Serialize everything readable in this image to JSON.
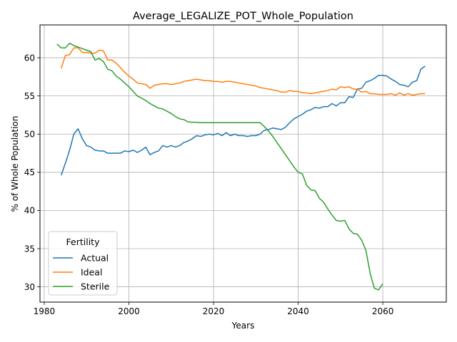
{
  "chart_data": {
    "type": "line",
    "title": "Average_LEGALIZE_POT_Whole_Population",
    "xlabel": "Years",
    "ylabel": "% of Whole Population",
    "xlim": [
      1979,
      2075
    ],
    "ylim": [
      28,
      64.3
    ],
    "xticks": [
      1980,
      2000,
      2020,
      2040,
      2060
    ],
    "yticks": [
      30,
      35,
      40,
      45,
      50,
      55,
      60
    ],
    "grid": true,
    "legend": {
      "title": "Fertility",
      "position": "lower-left"
    },
    "series": [
      {
        "name": "Actual",
        "color": "#1f77b4",
        "points": [
          [
            1984,
            44.6
          ],
          [
            1985,
            46.2
          ],
          [
            1986,
            47.9
          ],
          [
            1987,
            50.0
          ],
          [
            1988,
            50.7
          ],
          [
            1989,
            49.4
          ],
          [
            1990,
            48.5
          ],
          [
            1991,
            48.3
          ],
          [
            1992,
            47.9
          ],
          [
            1993,
            47.8
          ],
          [
            1994,
            47.8
          ],
          [
            1995,
            47.5
          ],
          [
            1996,
            47.5
          ],
          [
            1997,
            47.5
          ],
          [
            1998,
            47.5
          ],
          [
            1999,
            47.8
          ],
          [
            2000,
            47.7
          ],
          [
            2001,
            47.9
          ],
          [
            2002,
            47.6
          ],
          [
            2003,
            47.9
          ],
          [
            2004,
            48.3
          ],
          [
            2005,
            47.3
          ],
          [
            2006,
            47.6
          ],
          [
            2007,
            47.8
          ],
          [
            2008,
            48.5
          ],
          [
            2009,
            48.3
          ],
          [
            2010,
            48.5
          ],
          [
            2011,
            48.3
          ],
          [
            2012,
            48.5
          ],
          [
            2013,
            48.9
          ],
          [
            2014,
            49.1
          ],
          [
            2015,
            49.4
          ],
          [
            2016,
            49.8
          ],
          [
            2017,
            49.7
          ],
          [
            2018,
            49.9
          ],
          [
            2019,
            50.0
          ],
          [
            2020,
            49.9
          ],
          [
            2021,
            50.1
          ],
          [
            2022,
            49.8
          ],
          [
            2023,
            50.2
          ],
          [
            2024,
            49.8
          ],
          [
            2025,
            50.0
          ],
          [
            2026,
            49.8
          ],
          [
            2027,
            49.8
          ],
          [
            2028,
            49.7
          ],
          [
            2029,
            49.8
          ],
          [
            2030,
            49.8
          ],
          [
            2031,
            50.0
          ],
          [
            2032,
            50.5
          ],
          [
            2033,
            50.6
          ],
          [
            2034,
            50.8
          ],
          [
            2035,
            50.7
          ],
          [
            2036,
            50.6
          ],
          [
            2037,
            50.9
          ],
          [
            2038,
            51.5
          ],
          [
            2039,
            52.0
          ],
          [
            2040,
            52.3
          ],
          [
            2041,
            52.6
          ],
          [
            2042,
            53.0
          ],
          [
            2043,
            53.2
          ],
          [
            2044,
            53.5
          ],
          [
            2045,
            53.4
          ],
          [
            2046,
            53.6
          ],
          [
            2047,
            53.6
          ],
          [
            2048,
            54.0
          ],
          [
            2049,
            53.7
          ],
          [
            2050,
            54.1
          ],
          [
            2051,
            54.1
          ],
          [
            2052,
            54.9
          ],
          [
            2053,
            54.8
          ],
          [
            2054,
            55.9
          ],
          [
            2055,
            56.0
          ],
          [
            2056,
            56.8
          ],
          [
            2057,
            57.0
          ],
          [
            2058,
            57.3
          ],
          [
            2059,
            57.7
          ],
          [
            2060,
            57.7
          ],
          [
            2061,
            57.6
          ],
          [
            2062,
            57.2
          ],
          [
            2063,
            56.9
          ],
          [
            2064,
            56.5
          ],
          [
            2065,
            56.4
          ],
          [
            2066,
            56.2
          ],
          [
            2067,
            56.8
          ],
          [
            2068,
            57.0
          ],
          [
            2069,
            58.5
          ],
          [
            2070,
            58.9
          ]
        ]
      },
      {
        "name": "Ideal",
        "color": "#ff7f0e",
        "points": [
          [
            1984,
            58.6
          ],
          [
            1985,
            60.3
          ],
          [
            1986,
            60.4
          ],
          [
            1987,
            61.3
          ],
          [
            1988,
            61.3
          ],
          [
            1989,
            60.7
          ],
          [
            1990,
            60.7
          ],
          [
            1991,
            60.6
          ],
          [
            1992,
            60.6
          ],
          [
            1993,
            61.0
          ],
          [
            1994,
            60.9
          ],
          [
            1995,
            59.7
          ],
          [
            1996,
            59.7
          ],
          [
            1997,
            59.3
          ],
          [
            1998,
            58.7
          ],
          [
            1999,
            58.1
          ],
          [
            2000,
            57.6
          ],
          [
            2001,
            57.2
          ],
          [
            2002,
            56.7
          ],
          [
            2003,
            56.6
          ],
          [
            2004,
            56.5
          ],
          [
            2005,
            56.0
          ],
          [
            2006,
            56.4
          ],
          [
            2007,
            56.5
          ],
          [
            2008,
            56.6
          ],
          [
            2009,
            56.6
          ],
          [
            2010,
            56.5
          ],
          [
            2011,
            56.6
          ],
          [
            2012,
            56.7
          ],
          [
            2013,
            56.9
          ],
          [
            2014,
            57.0
          ],
          [
            2015,
            57.1
          ],
          [
            2016,
            57.2
          ],
          [
            2017,
            57.1
          ],
          [
            2018,
            57.0
          ],
          [
            2019,
            57.0
          ],
          [
            2020,
            56.9
          ],
          [
            2021,
            56.9
          ],
          [
            2022,
            56.8
          ],
          [
            2023,
            56.9
          ],
          [
            2024,
            56.9
          ],
          [
            2025,
            56.8
          ],
          [
            2026,
            56.7
          ],
          [
            2027,
            56.6
          ],
          [
            2028,
            56.5
          ],
          [
            2029,
            56.4
          ],
          [
            2030,
            56.3
          ],
          [
            2031,
            56.1
          ],
          [
            2032,
            56.0
          ],
          [
            2033,
            55.9
          ],
          [
            2034,
            55.8
          ],
          [
            2035,
            55.7
          ],
          [
            2036,
            55.5
          ],
          [
            2037,
            55.5
          ],
          [
            2038,
            55.7
          ],
          [
            2039,
            55.6
          ],
          [
            2040,
            55.6
          ],
          [
            2041,
            55.4
          ],
          [
            2042,
            55.4
          ],
          [
            2043,
            55.3
          ],
          [
            2044,
            55.4
          ],
          [
            2045,
            55.5
          ],
          [
            2046,
            55.6
          ],
          [
            2047,
            55.7
          ],
          [
            2048,
            55.9
          ],
          [
            2049,
            55.8
          ],
          [
            2050,
            56.2
          ],
          [
            2051,
            56.1
          ],
          [
            2052,
            56.2
          ],
          [
            2053,
            55.9
          ],
          [
            2054,
            55.9
          ],
          [
            2055,
            55.5
          ],
          [
            2056,
            55.6
          ],
          [
            2057,
            55.3
          ],
          [
            2058,
            55.3
          ],
          [
            2059,
            55.2
          ],
          [
            2060,
            55.2
          ],
          [
            2061,
            55.2
          ],
          [
            2062,
            55.3
          ],
          [
            2063,
            55.1
          ],
          [
            2064,
            55.4
          ],
          [
            2065,
            55.1
          ],
          [
            2066,
            55.3
          ],
          [
            2067,
            55.1
          ],
          [
            2068,
            55.2
          ],
          [
            2069,
            55.3
          ],
          [
            2070,
            55.3
          ]
        ]
      },
      {
        "name": "Sterile",
        "color": "#2ca02c",
        "points": [
          [
            1983,
            61.8
          ],
          [
            1984,
            61.3
          ],
          [
            1985,
            61.3
          ],
          [
            1986,
            61.9
          ],
          [
            1987,
            61.6
          ],
          [
            1988,
            61.4
          ],
          [
            1989,
            61.2
          ],
          [
            1990,
            61.0
          ],
          [
            1991,
            60.8
          ],
          [
            1992,
            59.7
          ],
          [
            1993,
            59.9
          ],
          [
            1994,
            59.5
          ],
          [
            1995,
            58.5
          ],
          [
            1996,
            58.3
          ],
          [
            1997,
            57.6
          ],
          [
            1998,
            57.2
          ],
          [
            1999,
            56.7
          ],
          [
            2000,
            56.2
          ],
          [
            2001,
            55.6
          ],
          [
            2002,
            55.0
          ],
          [
            2003,
            54.7
          ],
          [
            2004,
            54.4
          ],
          [
            2005,
            54.0
          ],
          [
            2006,
            53.7
          ],
          [
            2007,
            53.4
          ],
          [
            2008,
            53.3
          ],
          [
            2009,
            53.0
          ],
          [
            2010,
            52.7
          ],
          [
            2011,
            52.3
          ],
          [
            2012,
            52.0
          ],
          [
            2013,
            51.9
          ],
          [
            2014,
            51.6
          ],
          [
            2015,
            51.55
          ],
          [
            2016,
            51.55
          ],
          [
            2017,
            51.5
          ],
          [
            2018,
            51.5
          ],
          [
            2019,
            51.5
          ],
          [
            2020,
            51.5
          ],
          [
            2021,
            51.5
          ],
          [
            2022,
            51.5
          ],
          [
            2023,
            51.5
          ],
          [
            2024,
            51.5
          ],
          [
            2025,
            51.5
          ],
          [
            2026,
            51.5
          ],
          [
            2027,
            51.5
          ],
          [
            2028,
            51.5
          ],
          [
            2029,
            51.5
          ],
          [
            2030,
            51.5
          ],
          [
            2031,
            51.5
          ],
          [
            2032,
            51.0
          ],
          [
            2033,
            50.4
          ],
          [
            2034,
            49.7
          ],
          [
            2035,
            48.9
          ],
          [
            2036,
            48.1
          ],
          [
            2037,
            47.3
          ],
          [
            2038,
            46.5
          ],
          [
            2039,
            45.7
          ],
          [
            2040,
            45.0
          ],
          [
            2041,
            44.8
          ],
          [
            2042,
            43.3
          ],
          [
            2043,
            42.7
          ],
          [
            2044,
            42.6
          ],
          [
            2045,
            41.6
          ],
          [
            2046,
            41.1
          ],
          [
            2047,
            40.2
          ],
          [
            2048,
            39.4
          ],
          [
            2049,
            38.7
          ],
          [
            2050,
            38.6
          ],
          [
            2051,
            38.7
          ],
          [
            2052,
            37.6
          ],
          [
            2053,
            37.0
          ],
          [
            2054,
            36.9
          ],
          [
            2055,
            36.1
          ],
          [
            2056,
            34.8
          ],
          [
            2057,
            31.8
          ],
          [
            2058,
            29.8
          ],
          [
            2059,
            29.6
          ],
          [
            2060,
            30.4
          ]
        ]
      }
    ]
  }
}
